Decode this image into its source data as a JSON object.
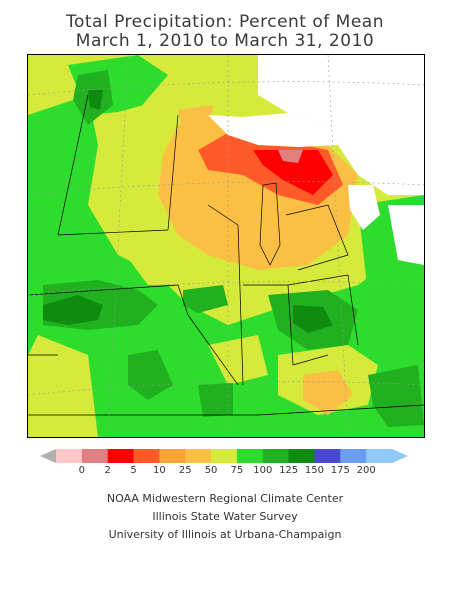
{
  "title": "Total Precipitation: Percent of Mean",
  "subtitle": "March 1, 2010 to March 31, 2010",
  "legend": {
    "ticks": [
      "0",
      "2",
      "5",
      "10",
      "25",
      "50",
      "75",
      "100",
      "125",
      "150",
      "175",
      "200"
    ],
    "colors": [
      "#ffc8c8",
      "#e08080",
      "#ff0000",
      "#ff5a28",
      "#fba434",
      "#fbbf44",
      "#d6ea3c",
      "#2ddc2d",
      "#20b020",
      "#0f8c0f",
      "#4848d0",
      "#6a9ef0",
      "#90c8f8"
    ],
    "left_arrow_color": "#b0b0b0",
    "right_arrow_color": "#90c8f8"
  },
  "credits": [
    "NOAA Midwestern Regional Climate Center",
    "Illinois State Water Survey",
    "University of Illinois at Urbana-Champaign"
  ],
  "map_colors": {
    "water": "#ffffff",
    "very_wet": "#0f8c0f",
    "wet": "#20b020",
    "above": "#2ddc2d",
    "near": "#d6ea3c",
    "below": "#fbbf44",
    "dry": "#fba434",
    "very_dry": "#ff5a28",
    "extreme_dry": "#ff0000",
    "extreme_wet": "#4848d0",
    "lines": "#000000"
  }
}
